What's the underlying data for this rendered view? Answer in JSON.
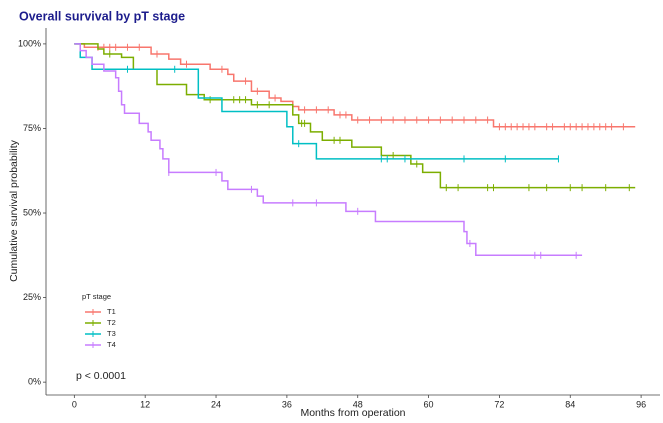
{
  "chart_data": {
    "type": "step",
    "title": "Overall survival by pT stage",
    "x_label": "Months from operation",
    "y_label": "Cumulative survival probability",
    "annotation": "p < 0.0001",
    "legend_title": "pT stage",
    "legend_position": "bottom-left",
    "grid": false,
    "xlim": [
      -4.8,
      99.2
    ],
    "ylim": [
      -3.8,
      104.7
    ],
    "xticks": [
      0,
      12,
      24,
      36,
      48,
      60,
      72,
      84,
      96
    ],
    "yticks": [
      {
        "value": 0,
        "label": "0%"
      },
      {
        "value": 25,
        "label": "25%"
      },
      {
        "value": 50,
        "label": "50%"
      },
      {
        "value": 75,
        "label": "75%"
      },
      {
        "value": 100,
        "label": "100%"
      }
    ],
    "series": [
      {
        "name": "T1",
        "color": "#F8766D",
        "x": [
          0,
          1.7,
          13,
          16,
          18,
          23,
          26,
          27,
          30,
          33,
          35,
          37,
          38,
          44,
          47,
          71,
          95
        ],
        "values": [
          100,
          99,
          97,
          95.5,
          94,
          92.5,
          91,
          89,
          86,
          84,
          83,
          81.5,
          80.5,
          79,
          77.5,
          75.5,
          75.5
        ],
        "censored": [
          4,
          5,
          6,
          7,
          9,
          11,
          14,
          19,
          25,
          29,
          31,
          34,
          39,
          41,
          43,
          45,
          46,
          48,
          50,
          52,
          54,
          56,
          58,
          60,
          62,
          64,
          66,
          68,
          70,
          72,
          73,
          74,
          75,
          76,
          77,
          78,
          80,
          81,
          83,
          84,
          85,
          86,
          87,
          88,
          89,
          90,
          91,
          93
        ]
      },
      {
        "name": "T2",
        "color": "#7CAE00",
        "x": [
          0,
          4,
          5,
          8,
          10,
          14,
          19,
          22,
          30,
          37,
          38,
          40,
          42,
          47,
          52,
          57,
          59,
          62,
          95
        ],
        "values": [
          100,
          98.5,
          97,
          96,
          92.5,
          88,
          85,
          83.5,
          82,
          79,
          76.5,
          74,
          71.5,
          69.5,
          67,
          64.5,
          62,
          57.5,
          57.5
        ],
        "censored": [
          6,
          23,
          27,
          28,
          29,
          31,
          33,
          38.5,
          39,
          44,
          45,
          54,
          58,
          63,
          65,
          70,
          71,
          77,
          80,
          84,
          86,
          90,
          94
        ]
      },
      {
        "name": "T3",
        "color": "#00BFC4",
        "x": [
          0,
          1,
          3,
          21,
          25,
          36,
          37,
          41,
          82
        ],
        "values": [
          100,
          96,
          92.5,
          84,
          80,
          75.5,
          70.5,
          66,
          66
        ],
        "censored": [
          9,
          17,
          38,
          52,
          53,
          56,
          66,
          73,
          82
        ]
      },
      {
        "name": "T4",
        "color": "#C77CFF",
        "x": [
          0,
          1,
          2,
          3,
          5,
          7,
          7.5,
          8,
          8.5,
          11,
          12.5,
          13,
          14.5,
          15,
          16,
          25,
          26,
          31,
          32,
          46,
          51,
          66,
          66.5,
          68,
          86
        ],
        "values": [
          100,
          98,
          96,
          94,
          92,
          90,
          86,
          82,
          79.5,
          76.5,
          74,
          71.5,
          69,
          66,
          62,
          59.5,
          57,
          55,
          53,
          50.5,
          47.5,
          44.5,
          41,
          37.5,
          37.5
        ],
        "censored": [
          16,
          24,
          30,
          37,
          41,
          48,
          67,
          78,
          79,
          85
        ]
      }
    ]
  }
}
